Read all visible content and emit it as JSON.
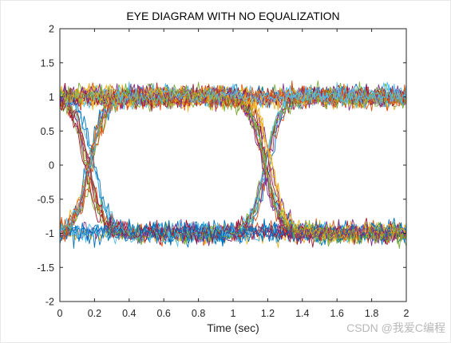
{
  "chart_data": {
    "type": "line",
    "title": "EYE DIAGRAM WITH NO EQUALIZATION",
    "xlabel": "Time (sec)",
    "ylabel": "",
    "xlim": [
      0,
      2
    ],
    "ylim": [
      -2,
      2
    ],
    "xticks": [
      0,
      0.2,
      0.4,
      0.6,
      0.8,
      1,
      1.2,
      1.4,
      1.6,
      1.8,
      2
    ],
    "xtick_labels": [
      "0",
      "0.2",
      "0.4",
      "0.6",
      "0.8",
      "1",
      "1.2",
      "1.4",
      "1.6",
      "1.8",
      "2"
    ],
    "yticks": [
      -2,
      -1.5,
      -1,
      -0.5,
      0,
      0.5,
      1,
      1.5,
      2
    ],
    "ytick_labels": [
      "-2",
      "-1.5",
      "-1",
      "-0.5",
      "0",
      "0.5",
      "1",
      "1.5",
      "2"
    ],
    "grid": false,
    "legend": false,
    "eye_diagram": {
      "levels": [
        -1,
        1
      ],
      "noise_amplitude": 0.15,
      "crossing_times": [
        0.17,
        1.2
      ],
      "eye_center_time": 0.7,
      "eye_opening_center_halfheight": 0.55,
      "trace_count": 48,
      "points_per_trace": 200
    },
    "colors": [
      "#0072BD",
      "#D95319",
      "#EDB120",
      "#7E2F8E",
      "#77AC30",
      "#4DBEEE",
      "#A2142F"
    ]
  },
  "watermark": "CSDN @我爱C编程"
}
